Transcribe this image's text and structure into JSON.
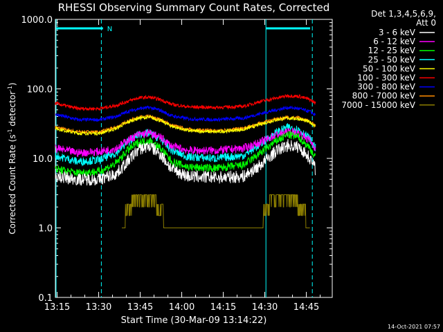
{
  "chart_data": {
    "type": "line",
    "title": "RHESSI Observing Summary Count Rates, Corrected",
    "xlabel": "Start Time (30-Mar-09 13:14:22)",
    "ylabel_main": "Corrected Count Rate (s",
    "ylabel_sup1": "-1",
    "ylabel_mid": " detector",
    "ylabel_sup2": "-1",
    "ylabel_end": ")",
    "yscale": "log",
    "ylim": [
      0.1,
      1000.0
    ],
    "xlim_min": [
      0,
      100
    ],
    "x_tick_labels": [
      "13:15",
      "13:30",
      "13:45",
      "14:00",
      "14:15",
      "14:30",
      "14:45"
    ],
    "x_tick_minutes": [
      0.6333,
      15.6333,
      30.6333,
      45.6333,
      60.6333,
      75.6333,
      90.6333
    ],
    "y_tick_labels": [
      "0.1",
      "1.0",
      "10.0",
      "100.0",
      "1000.0"
    ],
    "y_tick_values": [
      0.1,
      1.0,
      10.0,
      100.0,
      1000.0
    ],
    "legend_header_1": "Det 1,3,4,5,6,9,",
    "legend_header_2": "Att 0",
    "legend_placement": "right",
    "timestamp": "14-Oct-2021 07:57",
    "night_marker_label": "N",
    "night_bars_min": [
      [
        0.3,
        17.2
      ],
      [
        76.0,
        92.0
      ]
    ],
    "night_lines_min": [
      16.6,
      92.8
    ],
    "saa_lines_min": [
      0.0,
      75.8
    ],
    "series": [
      {
        "name": "3 - 6 keV",
        "color": "#ffffff",
        "points": [
          [
            0,
            5.5
          ],
          [
            8,
            5.0
          ],
          [
            16,
            5.0
          ],
          [
            22,
            6.0
          ],
          [
            26,
            9.0
          ],
          [
            30,
            13.5
          ],
          [
            34,
            15.0
          ],
          [
            38,
            11.5
          ],
          [
            42,
            7.0
          ],
          [
            48,
            5.5
          ],
          [
            58,
            5.3
          ],
          [
            68,
            5.5
          ],
          [
            74,
            8.0
          ],
          [
            80,
            13.0
          ],
          [
            84,
            15.5
          ],
          [
            88,
            14.5
          ],
          [
            92,
            10.0
          ],
          [
            94,
            7.0
          ]
        ]
      },
      {
        "name": "6 - 12 keV",
        "color": "#ff00ff",
        "points": [
          [
            0,
            14
          ],
          [
            8,
            12
          ],
          [
            16,
            12.5
          ],
          [
            22,
            14
          ],
          [
            26,
            18
          ],
          [
            30,
            22
          ],
          [
            34,
            23
          ],
          [
            38,
            20
          ],
          [
            42,
            15
          ],
          [
            48,
            13
          ],
          [
            58,
            13
          ],
          [
            68,
            14
          ],
          [
            74,
            17
          ],
          [
            80,
            22
          ],
          [
            84,
            24
          ],
          [
            88,
            23
          ],
          [
            92,
            18
          ],
          [
            94,
            14
          ]
        ]
      },
      {
        "name": "12 - 25 keV",
        "color": "#00ff00",
        "points": [
          [
            0,
            7.0
          ],
          [
            8,
            6.2
          ],
          [
            16,
            6.5
          ],
          [
            22,
            8.5
          ],
          [
            26,
            13
          ],
          [
            30,
            17
          ],
          [
            34,
            18
          ],
          [
            38,
            14
          ],
          [
            42,
            9
          ],
          [
            48,
            7.5
          ],
          [
            58,
            7.2
          ],
          [
            68,
            8
          ],
          [
            74,
            12
          ],
          [
            80,
            18
          ],
          [
            84,
            22
          ],
          [
            88,
            20
          ],
          [
            92,
            14
          ],
          [
            94,
            10
          ]
        ]
      },
      {
        "name": "25 - 50 keV",
        "color": "#00ffff",
        "points": [
          [
            0,
            11
          ],
          [
            8,
            9
          ],
          [
            16,
            9.5
          ],
          [
            22,
            12
          ],
          [
            26,
            17
          ],
          [
            30,
            22
          ],
          [
            34,
            23
          ],
          [
            38,
            19
          ],
          [
            42,
            13
          ],
          [
            48,
            10.5
          ],
          [
            58,
            10
          ],
          [
            68,
            11
          ],
          [
            74,
            16
          ],
          [
            80,
            24
          ],
          [
            84,
            28
          ],
          [
            88,
            26
          ],
          [
            92,
            19
          ],
          [
            94,
            14
          ]
        ]
      },
      {
        "name": "50 - 100 keV",
        "color": "#ffff00",
        "points": [
          [
            0,
            27
          ],
          [
            8,
            23
          ],
          [
            16,
            23
          ],
          [
            22,
            27
          ],
          [
            26,
            33
          ],
          [
            30,
            38
          ],
          [
            34,
            39
          ],
          [
            38,
            35
          ],
          [
            42,
            29
          ],
          [
            48,
            25
          ],
          [
            58,
            24
          ],
          [
            68,
            26
          ],
          [
            74,
            31
          ],
          [
            80,
            36
          ],
          [
            84,
            38
          ],
          [
            88,
            37
          ],
          [
            92,
            33
          ],
          [
            94,
            29
          ]
        ]
      },
      {
        "name": "100 - 300 keV",
        "color": "#ff0000",
        "points": [
          [
            0,
            62
          ],
          [
            8,
            52
          ],
          [
            16,
            52
          ],
          [
            22,
            58
          ],
          [
            26,
            66
          ],
          [
            30,
            74
          ],
          [
            34,
            76
          ],
          [
            38,
            70
          ],
          [
            42,
            60
          ],
          [
            48,
            55
          ],
          [
            58,
            54
          ],
          [
            68,
            56
          ],
          [
            74,
            66
          ],
          [
            80,
            74
          ],
          [
            84,
            80
          ],
          [
            88,
            78
          ],
          [
            92,
            70
          ],
          [
            94,
            62
          ]
        ]
      },
      {
        "name": "300 - 800 keV",
        "color": "#0000ff",
        "points": [
          [
            0,
            43
          ],
          [
            8,
            36
          ],
          [
            16,
            36
          ],
          [
            22,
            40
          ],
          [
            26,
            47
          ],
          [
            30,
            52
          ],
          [
            34,
            54
          ],
          [
            38,
            49
          ],
          [
            42,
            41
          ],
          [
            48,
            37
          ],
          [
            58,
            36
          ],
          [
            68,
            38
          ],
          [
            74,
            44
          ],
          [
            80,
            50
          ],
          [
            84,
            54
          ],
          [
            88,
            52
          ],
          [
            92,
            47
          ],
          [
            94,
            42
          ]
        ]
      },
      {
        "name": "800 - 7000 keV",
        "color": "#ff8c00",
        "points": [
          [
            0,
            28
          ],
          [
            8,
            24
          ],
          [
            16,
            24
          ],
          [
            22,
            28
          ],
          [
            26,
            34
          ],
          [
            30,
            39
          ],
          [
            34,
            40
          ],
          [
            38,
            36
          ],
          [
            42,
            30
          ],
          [
            48,
            26
          ],
          [
            58,
            25
          ],
          [
            68,
            27
          ],
          [
            74,
            32
          ],
          [
            80,
            37
          ],
          [
            84,
            39
          ],
          [
            88,
            38
          ],
          [
            92,
            34
          ],
          [
            94,
            30
          ]
        ]
      },
      {
        "name": "7000 - 15000 keV",
        "color": "#8b7d00",
        "points": [
          [
            24,
            1.0
          ],
          [
            26,
            1.5
          ],
          [
            28,
            2.5
          ],
          [
            30,
            3.0
          ],
          [
            34,
            3.0
          ],
          [
            36,
            2.3
          ],
          [
            38,
            1.8
          ],
          [
            40,
            1.0
          ],
          [
            42,
            1.0
          ],
          [
            74,
            1.0
          ],
          [
            76,
            1.6
          ],
          [
            78,
            2.6
          ],
          [
            80,
            3.0
          ],
          [
            86,
            3.0
          ],
          [
            88,
            2.0
          ],
          [
            90,
            1.4
          ],
          [
            92,
            1.0
          ]
        ]
      }
    ]
  }
}
